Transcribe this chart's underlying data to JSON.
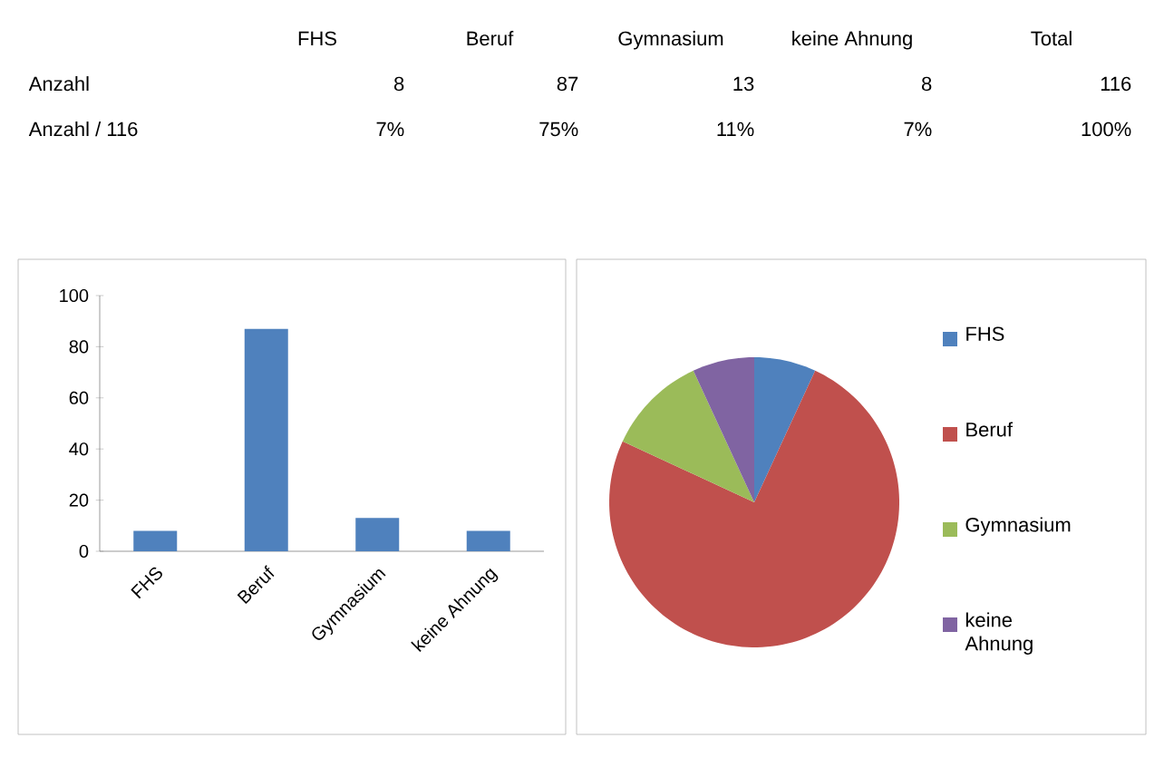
{
  "chart_data": [
    {
      "type": "other",
      "categories": [
        "FHS",
        "Beruf",
        "Gymnasium",
        "keine Ahnung",
        "Total"
      ],
      "data_labels": true,
      "series": [
        {
          "name": "Anzahl",
          "values": [
            8,
            87,
            13,
            8,
            116
          ]
        },
        {
          "name": "Anzahl / 116",
          "values": [
            7,
            75,
            11,
            7,
            100
          ],
          "value_labels": [
            "7%",
            "75%",
            "11%",
            "7%",
            "100%"
          ]
        }
      ]
    },
    {
      "type": "bar",
      "categories": [
        "FHS",
        "Beruf",
        "Gymnasium",
        "keine Ahnung"
      ],
      "values": [
        8,
        87,
        13,
        8
      ],
      "color": "#4f81bd",
      "ylim": [
        0,
        100
      ],
      "yticks": [
        0,
        20,
        40,
        60,
        80,
        100
      ],
      "grid": false,
      "legend": false
    },
    {
      "type": "pie",
      "categories": [
        "FHS",
        "Beruf",
        "Gymnasium",
        "keine Ahnung"
      ],
      "values": [
        6.9,
        75.0,
        11.2,
        6.9
      ],
      "colors": [
        "#4f81bd",
        "#c0504d",
        "#9bbb59",
        "#8064a2"
      ],
      "legend": "right"
    }
  ]
}
